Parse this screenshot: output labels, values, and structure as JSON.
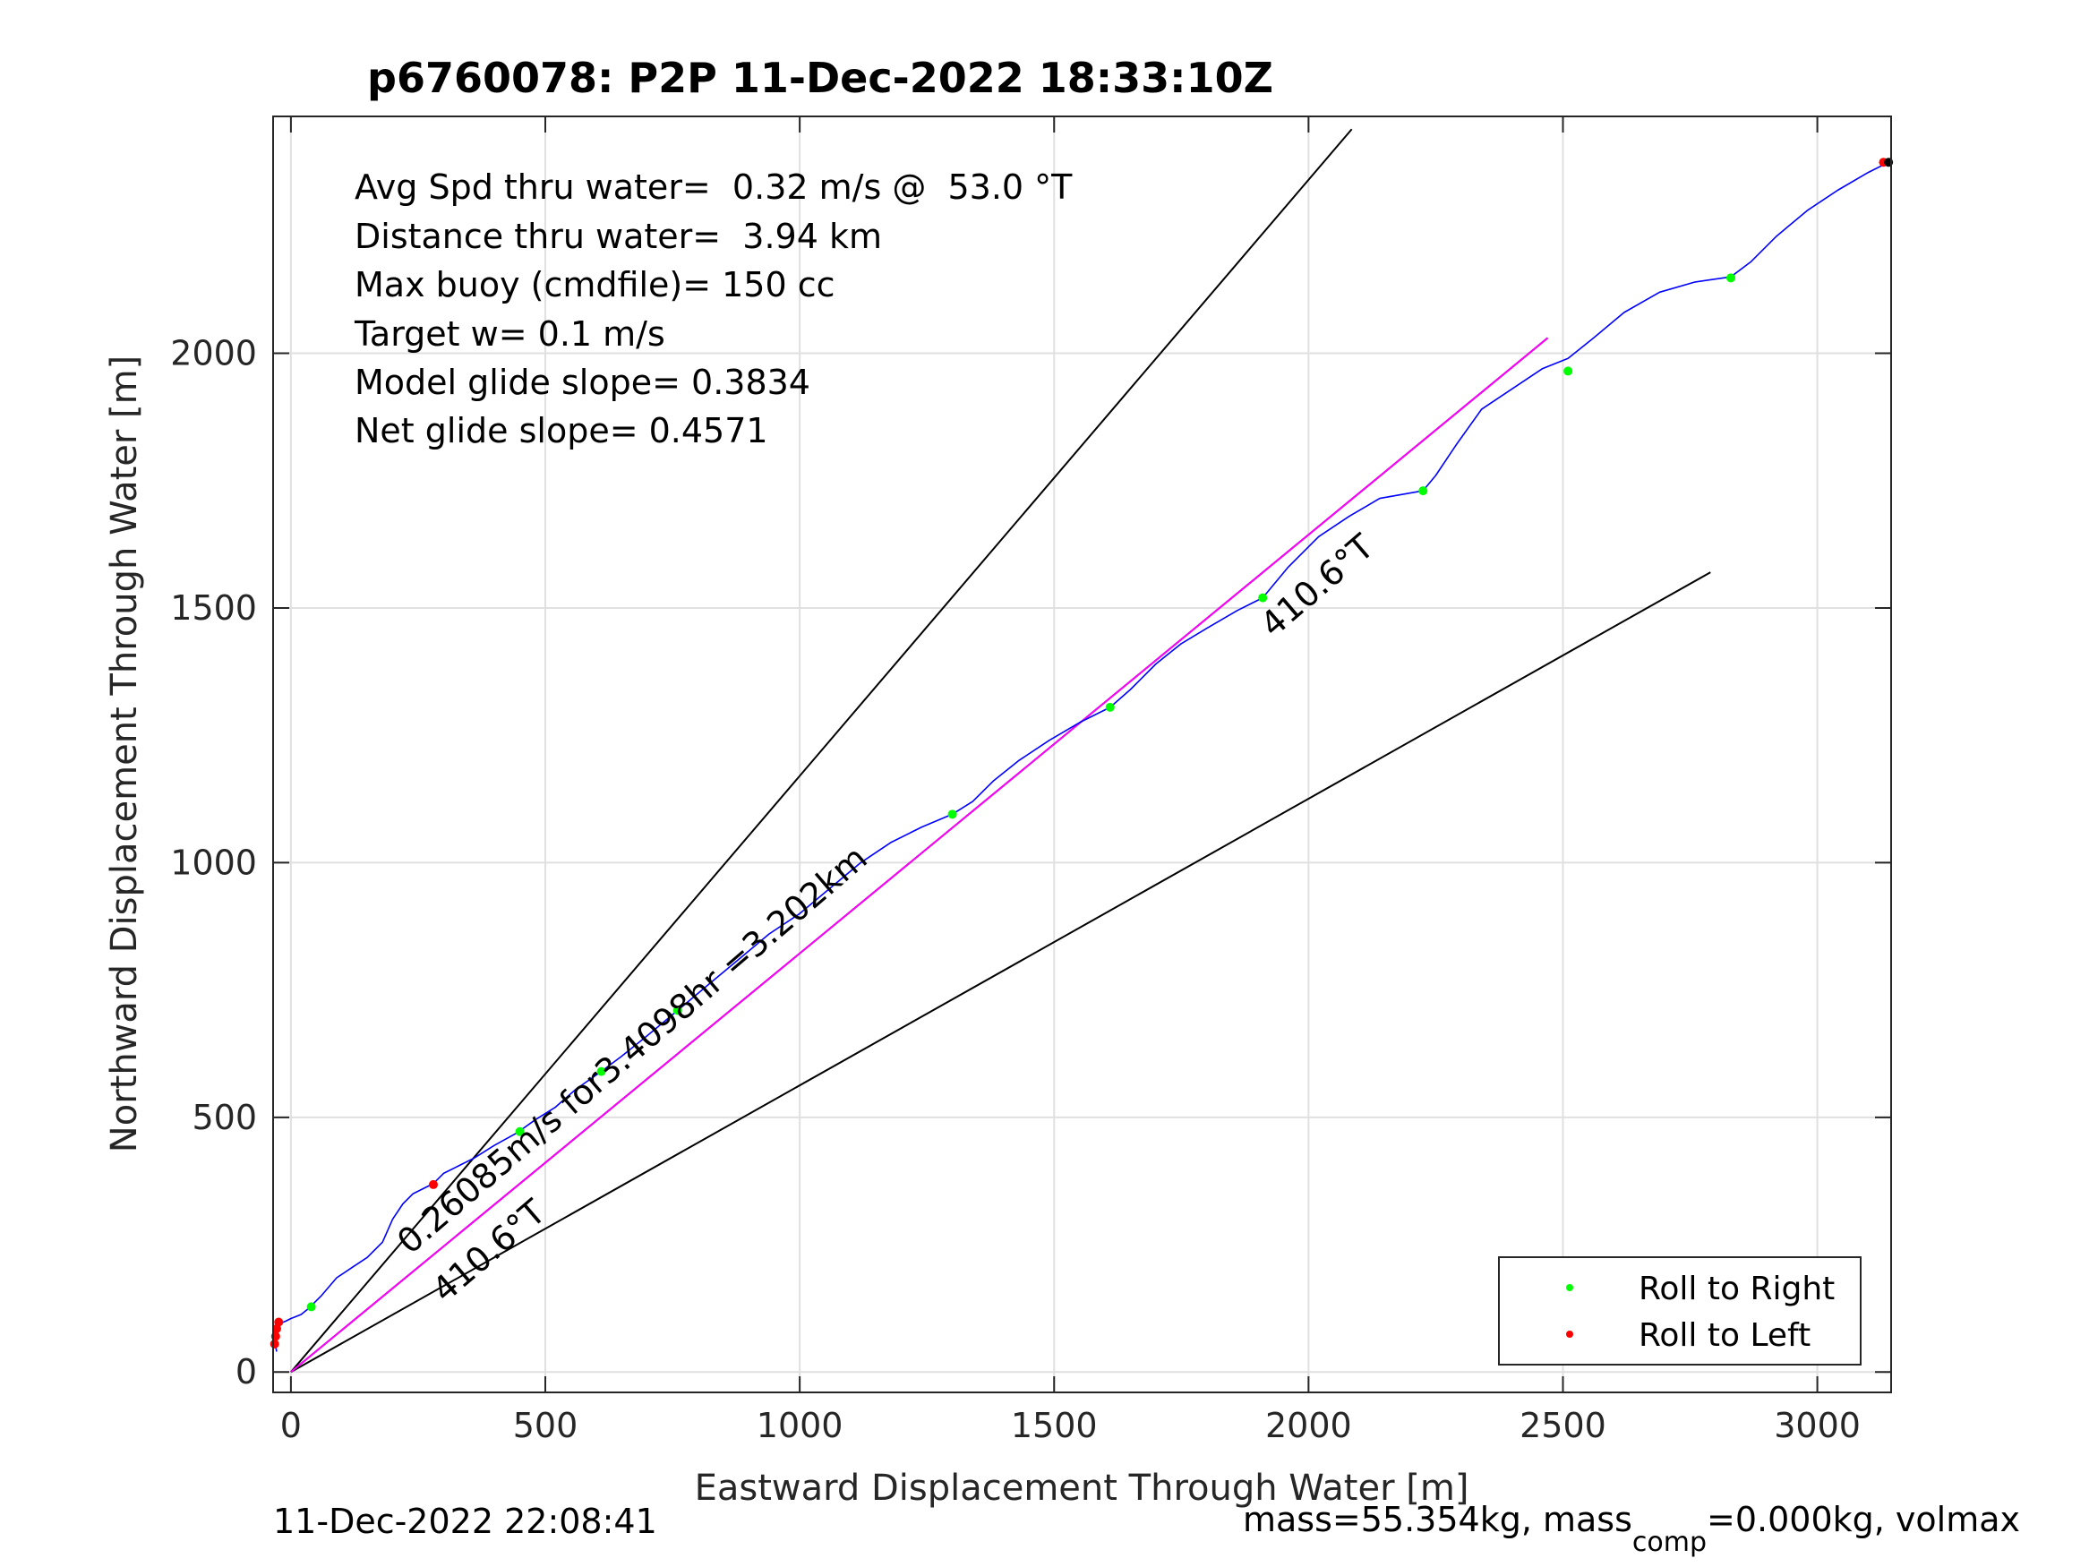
{
  "chart_data": {
    "type": "line",
    "title": "p6760078: P2P 11-Dec-2022 18:33:10Z",
    "xlabel": "Eastward Displacement Through Water [m]",
    "ylabel": "Northward Displacement Through Water [m]",
    "xlim": [
      -35,
      3145
    ],
    "ylim": [
      -40,
      2465
    ],
    "xticks": [
      0,
      500,
      1000,
      1500,
      2000,
      2500,
      3000
    ],
    "xtick_labels": [
      "0",
      "500",
      "1000",
      "1500",
      "2000",
      "2500",
      "3000"
    ],
    "yticks": [
      0,
      500,
      1000,
      1500,
      2000
    ],
    "ytick_labels": [
      "0",
      "500",
      "1000",
      "1500",
      "2000"
    ],
    "grid": true,
    "annotations": [
      "Avg Spd thru water=  0.32 m/s @  53.0 °T",
      "Distance thru water=  3.94 km",
      "Max buoy (cmdfile)= 150 cc",
      "Target w= 0.1 m/s",
      "Model glide slope= 0.3834",
      "Net glide slope= 0.4571"
    ],
    "line_labels": {
      "speed": "0.26085m/s for3.4098hr =3.202km",
      "heading_lower": "410.6°T",
      "heading_upper": "410.6°T"
    },
    "series": [
      {
        "name": "",
        "color": "#0000ff",
        "x": [
          -28,
          -32,
          -30,
          -22,
          -10,
          0,
          8,
          20,
          35,
          60,
          90,
          120,
          150,
          180,
          200,
          220,
          240,
          270,
          280,
          300,
          330,
          360,
          400,
          445,
          480,
          520,
          560,
          610,
          650,
          700,
          760,
          820,
          880,
          940,
          1000,
          1060,
          1120,
          1180,
          1240,
          1300,
          1340,
          1380,
          1430,
          1490,
          1550,
          1610,
          1650,
          1700,
          1750,
          1800,
          1860,
          1910,
          1960,
          2020,
          2080,
          2140,
          2225,
          2250,
          2290,
          2340,
          2400,
          2460,
          2510,
          2560,
          2620,
          2690,
          2760,
          2830,
          2870,
          2920,
          2980,
          3040,
          3100,
          3140
        ],
        "y": [
          40,
          60,
          80,
          95,
          100,
          105,
          108,
          113,
          125,
          150,
          185,
          205,
          225,
          255,
          300,
          330,
          350,
          365,
          370,
          390,
          405,
          420,
          445,
          470,
          495,
          520,
          555,
          590,
          620,
          660,
          710,
          760,
          810,
          860,
          900,
          950,
          1000,
          1040,
          1070,
          1095,
          1120,
          1160,
          1200,
          1240,
          1275,
          1305,
          1340,
          1390,
          1430,
          1460,
          1495,
          1520,
          1580,
          1640,
          1680,
          1715,
          1730,
          1760,
          1820,
          1890,
          1930,
          1970,
          1990,
          2030,
          2080,
          2120,
          2140,
          2150,
          2180,
          2230,
          2280,
          2320,
          2355,
          2375
        ]
      }
    ],
    "reference_lines": [
      {
        "color": "#000000",
        "x": [
          0,
          2085
        ],
        "y": [
          0,
          2440
        ]
      },
      {
        "color": "#000000",
        "x": [
          0,
          2790
        ],
        "y": [
          0,
          1570
        ]
      },
      {
        "color": "#000000",
        "x": [
          0,
          2470
        ],
        "y": [
          0,
          2030
        ]
      },
      {
        "color": "#ff00ff",
        "x": [
          0,
          2470
        ],
        "y": [
          0,
          2030
        ]
      }
    ],
    "roll_right_points": {
      "color": "#00ff00",
      "x": [
        40,
        450,
        610,
        760,
        1300,
        1610,
        1910,
        2225,
        2510,
        2830
      ],
      "y": [
        128,
        472,
        590,
        710,
        1095,
        1305,
        1520,
        1730,
        1965,
        2148
      ]
    },
    "roll_left_points": {
      "color": "#ff0000",
      "x": [
        -32,
        -30,
        -28,
        -24,
        280,
        3130
      ],
      "y": [
        55,
        70,
        85,
        98,
        368,
        2375
      ]
    },
    "end_point": {
      "color": "#000000",
      "x": 3140,
      "y": 2375
    },
    "legend": {
      "placement": "bottom-right",
      "entries": [
        {
          "label": "Roll to Right",
          "color": "#00ff00"
        },
        {
          "label": "Roll to Left",
          "color": "#ff0000"
        }
      ]
    }
  },
  "footer": {
    "timestamp": "11-Dec-2022 22:08:41",
    "mass_prefix": "mass=55.354kg, mass",
    "mass_sub": "comp",
    "mass_suffix": "=0.000kg, volmax"
  }
}
